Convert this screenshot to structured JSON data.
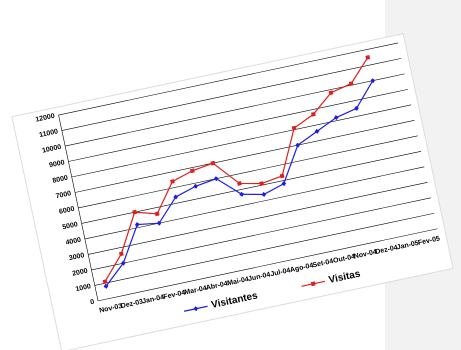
{
  "chart_data": {
    "type": "line",
    "categories": [
      "Nov-03",
      "Dez-03",
      "Jan-04",
      "Fev-04",
      "Mar-04",
      "Abr-04",
      "Mai-04",
      "Jun-04",
      "Jul-04",
      "Ago-04",
      "Set-04",
      "Out-04",
      "Nov-04",
      "Dez-04",
      "Jan-05",
      "Fev-05"
    ],
    "series": [
      {
        "name": "Visitantes",
        "color": "#1f1fe0",
        "values": [
          800,
          2000,
          4200,
          4000,
          5400,
          5800,
          6000,
          4700,
          4400,
          4800,
          7000,
          7600,
          8200,
          8500,
          10000,
          null
        ]
      },
      {
        "name": "Visitas",
        "color": "#e01f1f",
        "values": [
          1100,
          2600,
          5000,
          4600,
          6400,
          6800,
          7000,
          5400,
          5100,
          5300,
          8100,
          8700,
          9800,
          10100,
          11500,
          null
        ]
      }
    ],
    "ylim": [
      0,
      12000
    ],
    "yticks": [
      0,
      1000,
      2000,
      3000,
      4000,
      5000,
      6000,
      7000,
      8000,
      9000,
      10000,
      11000,
      12000
    ],
    "grid": true
  }
}
